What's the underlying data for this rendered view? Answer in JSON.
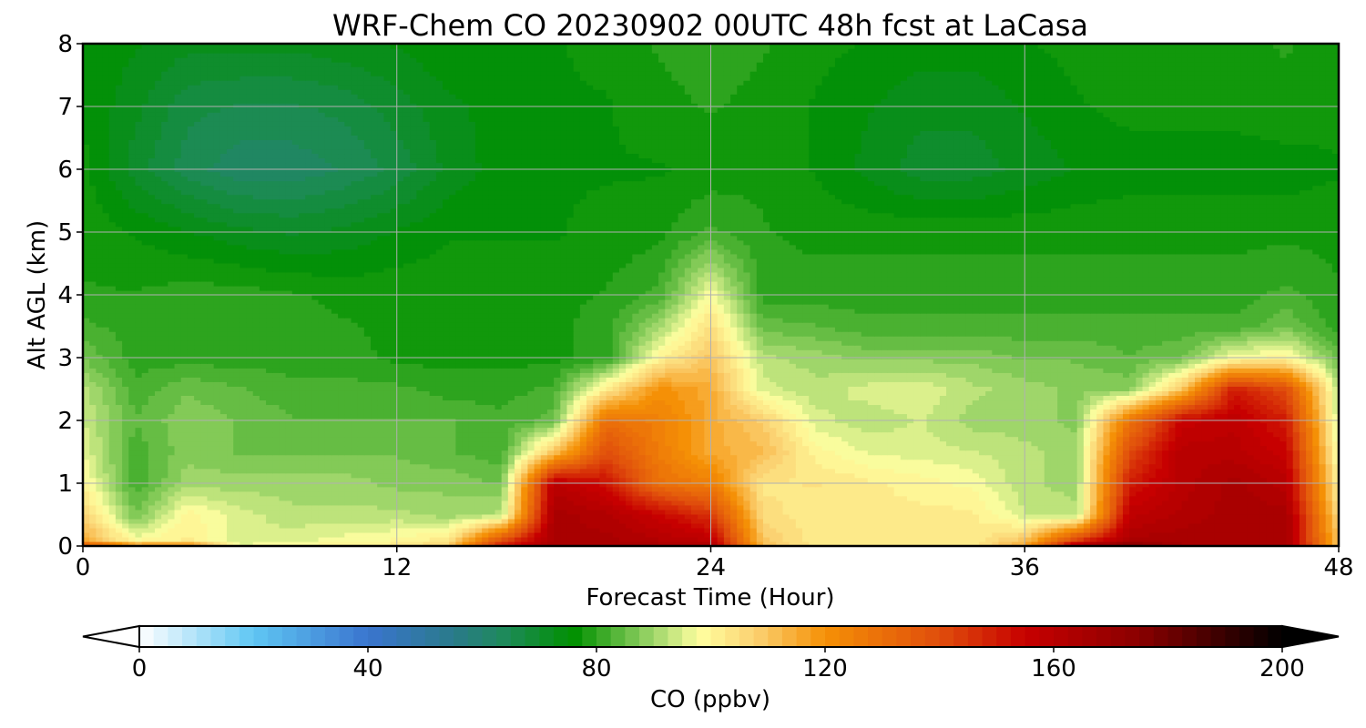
{
  "chart_data": {
    "type": "heatmap",
    "title": "WRF-Chem CO  20230902 00UTC 48h fcst at LaCasa",
    "xlabel": "Forecast Time (Hour)",
    "ylabel": "Alt AGL (km)",
    "xlim": [
      0,
      48
    ],
    "ylim": [
      0,
      8
    ],
    "xticks": [
      "0",
      "12",
      "24",
      "36",
      "48"
    ],
    "yticks": [
      "0",
      "1",
      "2",
      "3",
      "4",
      "5",
      "6",
      "7",
      "8"
    ],
    "grid": true,
    "x_hours": [
      0,
      2,
      4,
      6,
      8,
      10,
      12,
      14,
      16,
      18,
      20,
      22,
      24,
      26,
      28,
      30,
      32,
      34,
      36,
      38,
      40,
      42,
      44,
      46,
      48
    ],
    "y_km": [
      0,
      0.05,
      0.5,
      1,
      1.5,
      2,
      2.5,
      3,
      3.5,
      4,
      5,
      6,
      7,
      8
    ],
    "values": [
      [
        175,
        150,
        150,
        100,
        102,
        104,
        105,
        110,
        150,
        168,
        168,
        168,
        168,
        112,
        104,
        104,
        104,
        104,
        120,
        175,
        195,
        166,
        166,
        166,
        110
      ],
      [
        116,
        100,
        102,
        94,
        96,
        98,
        100,
        105,
        145,
        165,
        165,
        162,
        160,
        110,
        102,
        102,
        102,
        102,
        112,
        150,
        165,
        166,
        166,
        166,
        110
      ],
      [
        108,
        86,
        100,
        95,
        92,
        92,
        92,
        90,
        92,
        165,
        162,
        155,
        145,
        105,
        102,
        102,
        102,
        102,
        94,
        92,
        158,
        162,
        165,
        165,
        105
      ],
      [
        100,
        82,
        90,
        90,
        90,
        90,
        88,
        88,
        86,
        160,
        152,
        130,
        125,
        103,
        104,
        102,
        100,
        98,
        92,
        90,
        150,
        160,
        165,
        160,
        100
      ],
      [
        96,
        82,
        88,
        86,
        86,
        86,
        86,
        84,
        82,
        110,
        140,
        126,
        115,
        112,
        100,
        96,
        95,
        94,
        92,
        90,
        140,
        160,
        160,
        155,
        96
      ],
      [
        94,
        84,
        88,
        86,
        84,
        84,
        84,
        84,
        82,
        85,
        130,
        125,
        115,
        108,
        95,
        92,
        94,
        90,
        90,
        88,
        128,
        155,
        158,
        150,
        93
      ],
      [
        92,
        82,
        86,
        84,
        82,
        82,
        82,
        80,
        80,
        82,
        102,
        120,
        115,
        95,
        92,
        95,
        96,
        92,
        90,
        88,
        88,
        110,
        150,
        140,
        92
      ],
      [
        86,
        80,
        80,
        80,
        80,
        80,
        78,
        78,
        78,
        78,
        80,
        100,
        110,
        92,
        90,
        88,
        88,
        88,
        86,
        86,
        84,
        86,
        98,
        100,
        85
      ],
      [
        82,
        80,
        80,
        80,
        80,
        79,
        78,
        78,
        78,
        78,
        80,
        90,
        105,
        85,
        84,
        82,
        82,
        82,
        82,
        82,
        82,
        82,
        82,
        86,
        80
      ],
      [
        79,
        79,
        80,
        80,
        79,
        78,
        78,
        78,
        78,
        78,
        79,
        82,
        98,
        80,
        80,
        80,
        80,
        80,
        80,
        80,
        80,
        80,
        80,
        82,
        79
      ],
      [
        78,
        76,
        74,
        72,
        71,
        72,
        74,
        76,
        76,
        76,
        77,
        78,
        82,
        79,
        78,
        78,
        78,
        78,
        78,
        78,
        78,
        78,
        78,
        78,
        78
      ],
      [
        77,
        70,
        65,
        62,
        62,
        64,
        67,
        72,
        75,
        76,
        76,
        76,
        77,
        78,
        76,
        73,
        70,
        70,
        72,
        74,
        75,
        75,
        75,
        75,
        76
      ],
      [
        76,
        72,
        67,
        66,
        66,
        67,
        70,
        73,
        75,
        76,
        76,
        78,
        79,
        78,
        76,
        74,
        72,
        72,
        74,
        76,
        77,
        77,
        77,
        78,
        77
      ],
      [
        76,
        74,
        72,
        72,
        72,
        73,
        74,
        76,
        76,
        76,
        77,
        79,
        80,
        79,
        77,
        76,
        75,
        75,
        76,
        77,
        78,
        78,
        78,
        79,
        77
      ]
    ],
    "colorbar": {
      "label": "CO  (ppbv)",
      "min": 0,
      "max": 200,
      "ticks": [
        "0",
        "40",
        "80",
        "120",
        "160",
        "200"
      ],
      "extend": "both",
      "colormap": [
        [
          0,
          "#ffffff"
        ],
        [
          20,
          "#5fc6f3"
        ],
        [
          40,
          "#3a75cf"
        ],
        [
          55,
          "#2a7a8a"
        ],
        [
          64,
          "#1e8a5a"
        ],
        [
          76,
          "#009000"
        ],
        [
          90,
          "#9fd66a"
        ],
        [
          98,
          "#ffffa0"
        ],
        [
          108,
          "#fbd070"
        ],
        [
          120,
          "#f59006"
        ],
        [
          140,
          "#e04e0c"
        ],
        [
          155,
          "#c70000"
        ],
        [
          175,
          "#8a0000"
        ],
        [
          200,
          "#000000"
        ]
      ]
    }
  }
}
